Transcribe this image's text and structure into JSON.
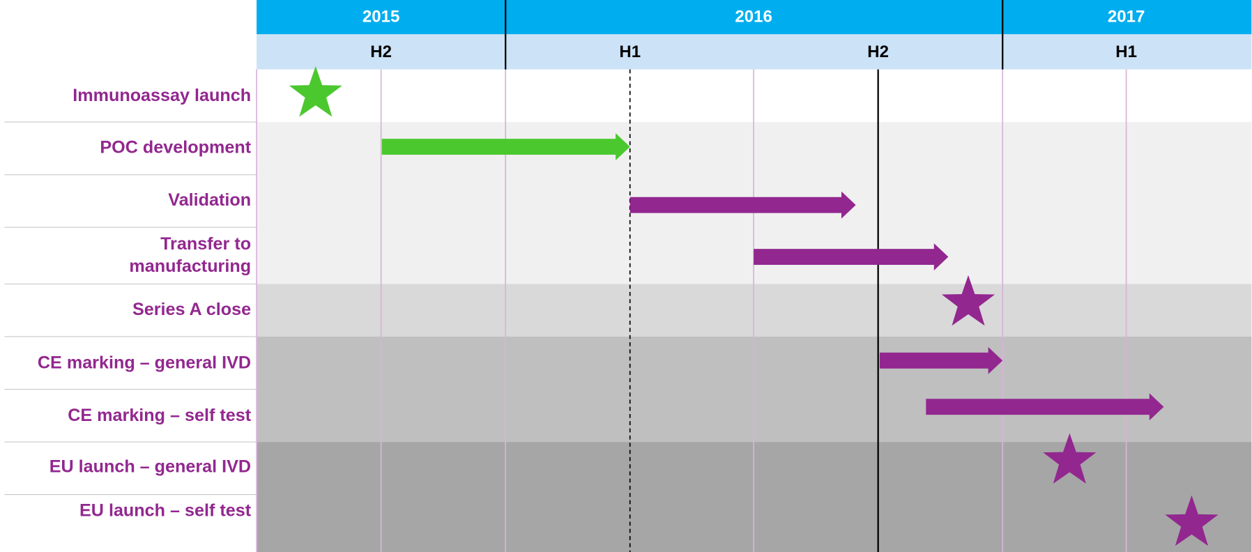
{
  "header": {
    "years": [
      "2015",
      "2016",
      "2017"
    ],
    "halves": [
      "H2",
      "H1",
      "H2",
      "H1"
    ]
  },
  "rows": [
    [
      "Immunoassay launch"
    ],
    [
      "POC development"
    ],
    [
      "Validation"
    ],
    [
      "Transfer to",
      "manufacturing"
    ],
    [
      "Series A close"
    ],
    [
      "CE marking – general IVD"
    ],
    [
      "CE marking – self test"
    ],
    [
      "EU launch – general IVD"
    ],
    [
      "EU launch – self test"
    ]
  ]
}
